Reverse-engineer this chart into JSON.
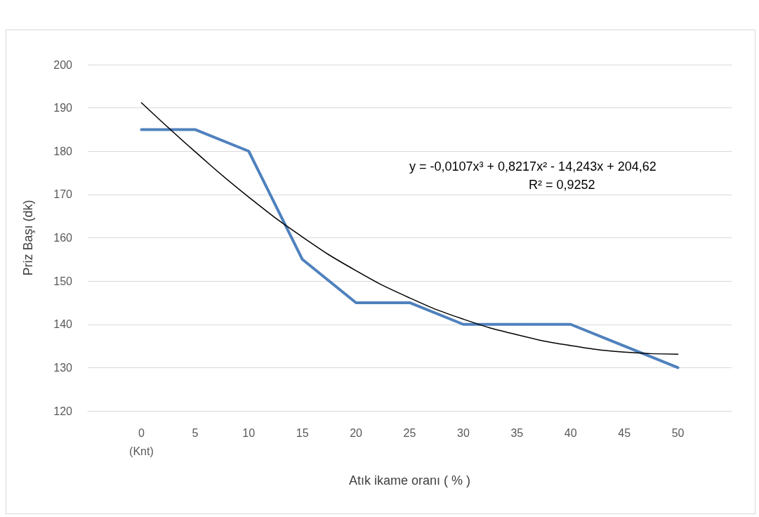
{
  "chart_data": {
    "type": "line",
    "xlabel": "Atık ikame oranı ( % )",
    "ylabel": "Priz Başı (dk)",
    "xlim": [
      -5,
      55
    ],
    "xticks": [
      {
        "value": 0,
        "label": "0\n(Knt)"
      },
      5,
      10,
      15,
      20,
      25,
      30,
      35,
      40,
      45,
      50
    ],
    "ylim": [
      120,
      200
    ],
    "yticks": [
      120,
      130,
      140,
      150,
      160,
      170,
      180,
      190,
      200
    ],
    "grid": "y",
    "marker": "none",
    "line_style": "solid",
    "series": [
      {
        "color": "#4f81bd",
        "x": [
          0,
          5,
          10,
          15,
          20,
          25,
          30,
          35,
          40,
          45,
          50
        ],
        "values": [
          185,
          185,
          180,
          155,
          145,
          145,
          140,
          140,
          140,
          135,
          130
        ]
      },
      {
        "color": "#000000",
        "x": [
          0,
          5,
          10,
          15,
          20,
          25,
          30,
          35,
          40,
          45,
          50
        ],
        "values": [
          191.2,
          179.9,
          169.4,
          160.2,
          152.4,
          146.1,
          141.2,
          137.6,
          135.1,
          133.6,
          133.1
        ]
      }
    ],
    "annotations": [
      "y = -0,0107x³ + 0,8217x² - 14,243x + 204,62",
      "R² = 0,9252"
    ]
  }
}
